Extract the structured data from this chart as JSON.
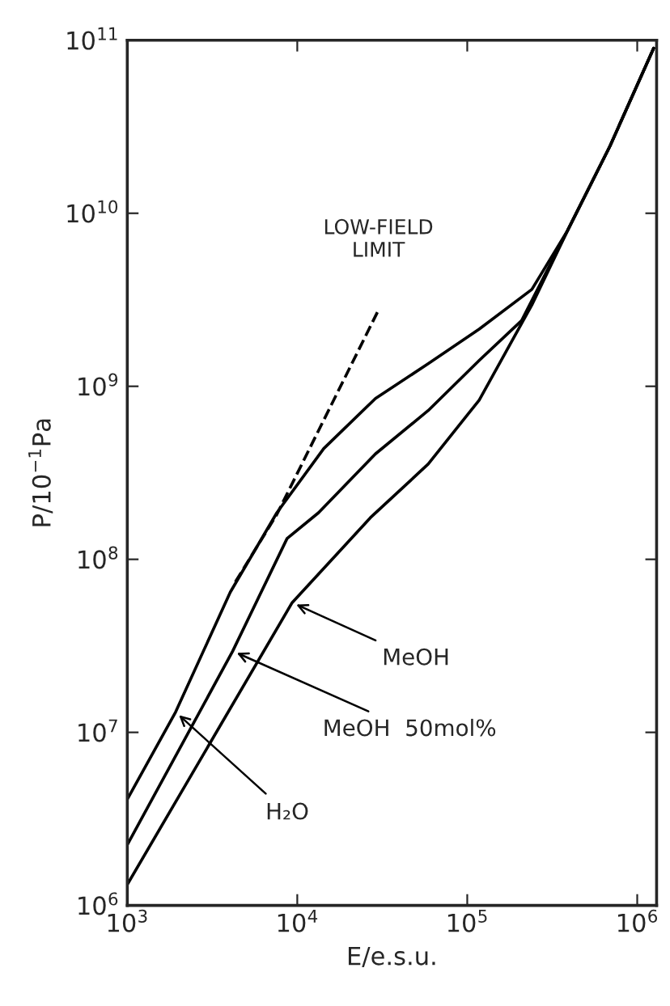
{
  "chart_data": {
    "type": "line",
    "xlabel": "E/e.s.u.",
    "ylabel": "P/10$^{−1}$Pa",
    "log": "xy",
    "grid": false,
    "legend": false,
    "xlim": [
      1000,
      1300000
    ],
    "ylim": [
      1000000,
      100000000000
    ],
    "xticks": [
      {
        "value": 1000,
        "label": "10$^{3}$"
      },
      {
        "value": 10000,
        "label": "10$^{4}$"
      },
      {
        "value": 100000,
        "label": "10$^{5}$"
      },
      {
        "value": 1000000,
        "label": "10$^{6}$"
      }
    ],
    "yticks": [
      {
        "value": 1000000,
        "label": "10$^{6}$"
      },
      {
        "value": 10000000,
        "label": "10$^{7}$"
      },
      {
        "value": 100000000,
        "label": "10$^{8}$"
      },
      {
        "value": 1000000000,
        "label": "10$^{9}$"
      },
      {
        "value": 10000000000,
        "label": "10$^{10}$"
      },
      {
        "value": 100000000000,
        "label": "10$^{11}$"
      }
    ],
    "series": [
      {
        "color": "#000000",
        "line_style": "solid",
        "x": [
          1000,
          1923,
          4036,
          7586,
          14320,
          28840,
          58880,
          117500,
          239900,
          389000,
          691800,
          1250000
        ],
        "values": [
          4100000,
          13100000,
          64600000,
          186000000,
          437000000,
          851000000,
          1350000000,
          2140000000,
          3630000000,
          7940000000,
          24500000000,
          90000000000
        ]
      },
      {
        "color": "#000000",
        "line_style": "solid",
        "x": [
          1000,
          4170,
          8710,
          13340,
          28840,
          58880,
          117500,
          208900,
          389000,
          691800,
          1250000
        ],
        "values": [
          2240000,
          29500000,
          132000000,
          186000000,
          407000000,
          724000000,
          1410000000,
          2400000000,
          7940000000,
          24500000000,
          90000000000
        ]
      },
      {
        "color": "#000000",
        "line_style": "solid",
        "x": [
          1000,
          9330,
          26920,
          58880,
          117500,
          239900,
          389000,
          691800,
          1250000
        ],
        "values": [
          1320000,
          56200000,
          174000000,
          355000000,
          832000000,
          2950000000,
          7940000000,
          24500000000,
          90000000000
        ]
      },
      {
        "color": "#000000",
        "line_style": "dashed",
        "x": [
          4325,
          7586,
          30000
        ],
        "values": [
          74100000,
          182000000,
          2750000000
        ]
      }
    ],
    "annotations": [
      {
        "text": "LOW-FIELD\nLIMIT",
        "x": 30000,
        "y": 2750000000
      },
      {
        "text": "MeOH",
        "x": 9330,
        "y": 56200000
      },
      {
        "text": "MeOH  50mol%",
        "x": 4170,
        "y": 29500000
      },
      {
        "text": "H₂O",
        "x": 1923,
        "y": 13100000
      }
    ]
  }
}
